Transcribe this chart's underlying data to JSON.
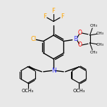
{
  "bg_color": "#e8e8e8",
  "bond_color": "#000000",
  "cl_color": "#ffa500",
  "f_color": "#ffa500",
  "b_color": "#4444ff",
  "o_color": "#ff0000",
  "n_color": "#4444ff",
  "lw": 1.0,
  "figsize": [
    1.52,
    1.52
  ],
  "dpi": 100,
  "xlim": [
    -2.5,
    2.5
  ],
  "ylim": [
    -2.8,
    2.2
  ]
}
